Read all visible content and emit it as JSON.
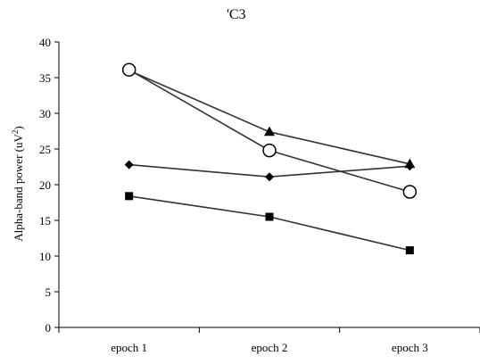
{
  "chart_data": {
    "type": "line",
    "title": "'C3",
    "xlabel": "",
    "ylabel": "Alpha-band power (uV",
    "ylabel_sup": "2",
    "ylabel_end": ")",
    "categories": [
      "epoch 1",
      "epoch 2",
      "epoch 3"
    ],
    "ylim": [
      0,
      40
    ],
    "yticks": [
      0,
      5,
      10,
      15,
      20,
      25,
      30,
      35,
      40
    ],
    "grid": false,
    "series": [
      {
        "marker": "diamond",
        "color": "#000000",
        "values": [
          22.8,
          21.1,
          22.6
        ]
      },
      {
        "marker": "square",
        "color": "#000000",
        "values": [
          18.4,
          15.5,
          10.8
        ]
      },
      {
        "marker": "triangle",
        "color": "#000000",
        "values": [
          36.0,
          27.4,
          22.9
        ]
      },
      {
        "marker": "circle-open",
        "color": "#000000",
        "values": [
          36.1,
          24.8,
          19.0
        ]
      }
    ]
  }
}
